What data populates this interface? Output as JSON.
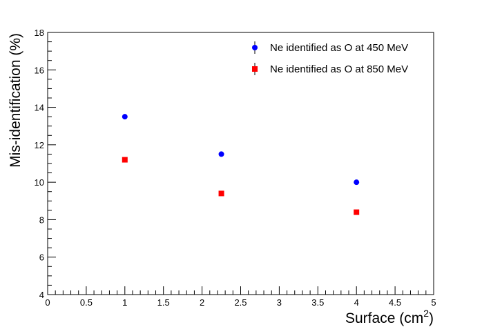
{
  "chart_data": {
    "type": "scatter",
    "xlabel": "Surface (cm",
    "xlabel_sup": "2",
    "xlabel_close": ")",
    "ylabel": "Mis-identification (%)",
    "xlim": [
      0,
      5
    ],
    "ylim": [
      4,
      18
    ],
    "x_ticks": [
      "0",
      "0.5",
      "1",
      "1.5",
      "2",
      "2.5",
      "3",
      "3.5",
      "4",
      "4.5",
      "5"
    ],
    "y_ticks": [
      "4",
      "6",
      "8",
      "10",
      "12",
      "14",
      "16",
      "18"
    ],
    "grid": false,
    "legend_position": "top-right",
    "series": [
      {
        "name": "Ne identified as O at 450 MeV",
        "marker": "circle",
        "color": "#0000ff",
        "x": [
          1,
          2.25,
          4
        ],
        "y": [
          13.5,
          11.5,
          10.0
        ]
      },
      {
        "name": "Ne identified as O at 850 MeV",
        "marker": "square",
        "color": "#ff0000",
        "x": [
          1,
          2.25,
          4
        ],
        "y": [
          11.2,
          9.4,
          8.4
        ]
      }
    ]
  }
}
